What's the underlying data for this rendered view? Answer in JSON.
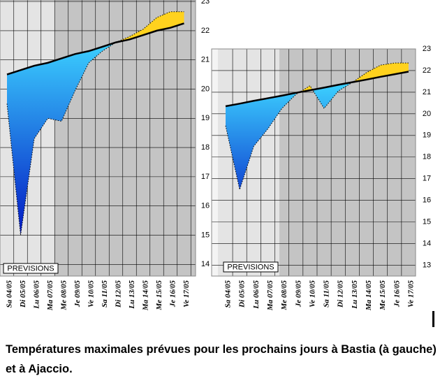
{
  "chart_data": [
    {
      "type": "line",
      "categories": [
        "Sa 04/05",
        "Di 05/05",
        "Lu 06/05",
        "Ma 07/05",
        "Me 08/05",
        "Je 09/05",
        "Ve 10/05",
        "Sa 11/05",
        "Di 12/05",
        "Lu 13/05",
        "Ma 14/05",
        "Me 15/05",
        "Je 16/05",
        "Ve 17/05"
      ],
      "series": [
        {
          "color": "#000000",
          "values": [
            20.5,
            20.65,
            20.8,
            20.9,
            21.05,
            21.2,
            21.3,
            21.45,
            21.6,
            21.7,
            21.85,
            22.0,
            22.1,
            22.25
          ]
        },
        {
          "color": "#1ea0f0",
          "values": [
            19.5,
            15.0,
            18.3,
            19.0,
            18.9,
            19.95,
            20.9,
            21.3,
            21.6,
            21.8,
            22.05,
            22.45,
            22.65,
            22.65
          ]
        }
      ],
      "ylim": [
        13.6,
        23.05
      ],
      "yticks": [
        14,
        15,
        16,
        17,
        18,
        19,
        20,
        21,
        22,
        23
      ],
      "annotation": "PREVISIONS",
      "grid": true
    },
    {
      "type": "line",
      "categories": [
        "Sa 04/05",
        "Di 05/05",
        "Lu 06/05",
        "Ma 07/05",
        "Me 08/05",
        "Je 09/05",
        "Ve 10/05",
        "Sa 11/05",
        "Di 12/05",
        "Lu 13/05",
        "Ma 14/05",
        "Me 15/05",
        "Je 16/05",
        "Ve 17/05"
      ],
      "series": [
        {
          "color": "#000000",
          "values": [
            20.35,
            20.47,
            20.6,
            20.72,
            20.84,
            20.97,
            21.09,
            21.21,
            21.34,
            21.46,
            21.58,
            21.71,
            21.83,
            21.95
          ]
        },
        {
          "color": "#1ea0f0",
          "values": [
            19.45,
            16.5,
            18.5,
            19.3,
            20.25,
            20.9,
            21.3,
            20.25,
            21.05,
            21.45,
            21.9,
            22.25,
            22.35,
            22.35
          ]
        }
      ],
      "ylim": [
        12.5,
        23
      ],
      "yticks": [
        13,
        14,
        15,
        16,
        17,
        18,
        19,
        20,
        21,
        22,
        23
      ],
      "annotation": "PREVISIONS",
      "grid": true
    }
  ],
  "caption": "Températures maximales prévues pour les prochains jours à Bastia (à gauche) et à Ajaccio."
}
